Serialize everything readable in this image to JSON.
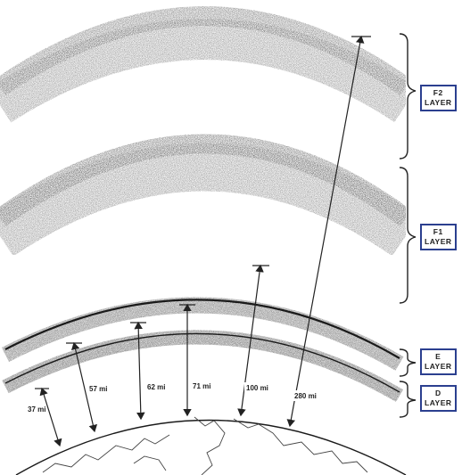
{
  "layers": [
    {
      "id": "f2",
      "line1": "F2",
      "line2": "LAYER"
    },
    {
      "id": "f1",
      "line1": "F1",
      "line2": "LAYER"
    },
    {
      "id": "e",
      "line1": "E",
      "line2": "LAYER"
    },
    {
      "id": "d",
      "line1": "D",
      "line2": "LAYER"
    }
  ],
  "altitudes": [
    "37 mi",
    "57 mi",
    "62 mi",
    "71 mi",
    "100 mi",
    "280 mi"
  ],
  "colors": {
    "label_border": "#2b3f8f",
    "ink": "#222222",
    "band": "#2a2a2a"
  }
}
